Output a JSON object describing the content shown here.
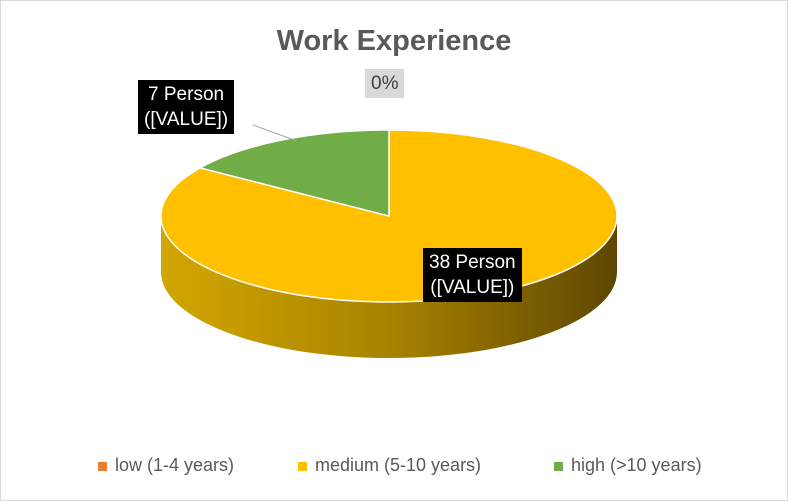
{
  "chart_data": {
    "type": "pie3d",
    "title": "Work Experience",
    "categories": [
      "low (1-4 years)",
      "medium (5-10 years)",
      "high (>10 years)"
    ],
    "values": [
      0,
      38,
      7
    ],
    "value_labels": [
      "0%",
      "38 Person\n([VALUE])",
      "7 Person\n([VALUE])"
    ],
    "colors": [
      "#ed7d31",
      "#ffc000",
      "#70ad47"
    ],
    "legend": "bottom"
  }
}
